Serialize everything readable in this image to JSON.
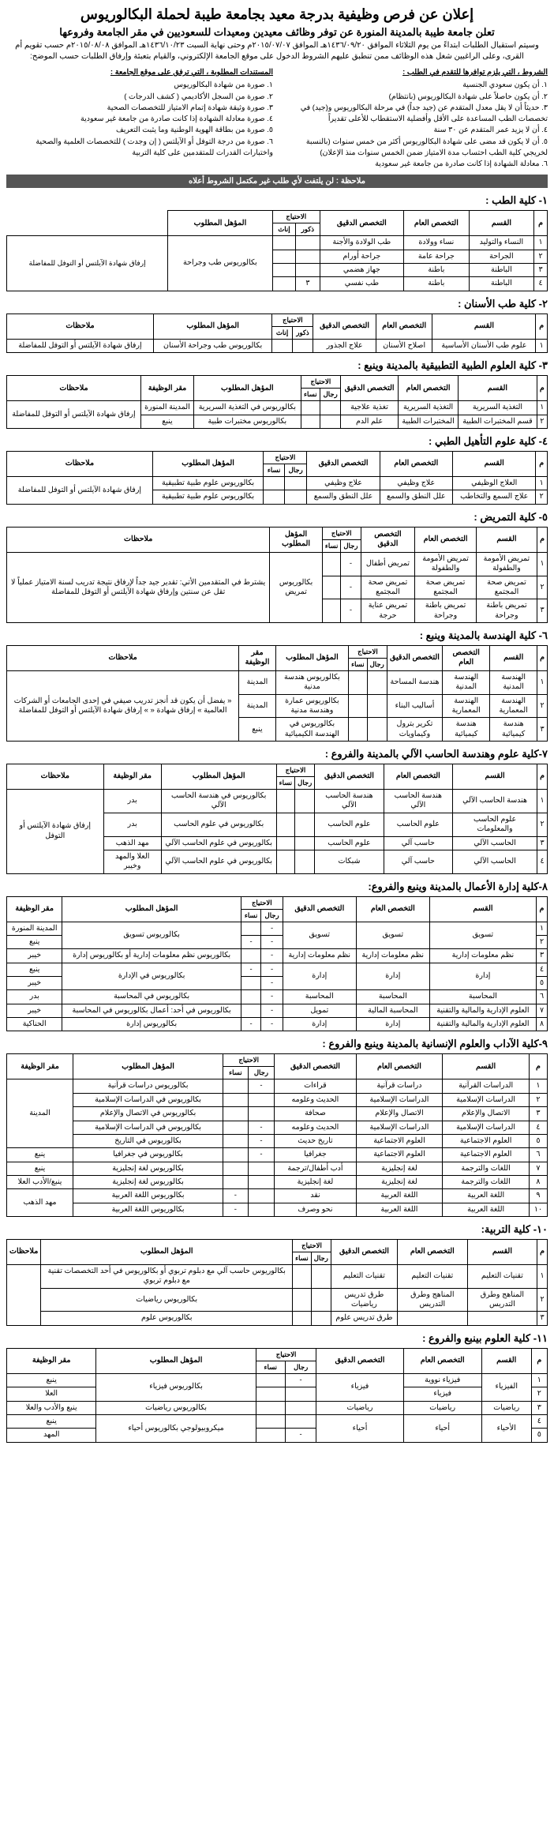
{
  "header": {
    "main_title": "إعلان عن فرص وظيفية بدرجة معيد بجامعة طيبة لحملة البكالوريوس",
    "sub_title": "تعلن جامعة طيبة بالمدينة المنورة عن توفر وظائف معيدين ومعيدات للسعوديين في مقر الجامعة وفروعها",
    "desc": "وسيتم استقبال الطلبات ابتداءً من يوم الثلاثاء الموافق ١٤٣٦/٠٩/٢٠هـ الموافق ٢٠١٥/٠٧/٠٧م وحتى نهاية السبت ١٤٣٦/١٠/٢٣هـ الموافق ٢٠١٥/٠٨/٠٨م حسب تقويم أم القرى، وعلى الراغبين شغل هذه الوظائف ممن تنطبق عليهم الشروط الدخول على موقع الجامعة الإلكتروني، والقيام بتعبئة وإرفاق الطلبات حسب الموضح:"
  },
  "conditions": {
    "right_title": "الشروط ، التي يلزم توافرها للتقدم في الطلب :",
    "right_items": [
      "١. أن يكون سعودي الجنسية",
      "٢. أن يكون حاصلاً على شهادة البكالوريوس (بانتظام)",
      "٣. حديثاً أن لا يقل معدل المتقدم عن (جيد جداً) في مرحلة البكالوريوس و(جيد) في تخصصات الطب المساعدة على الأقل وأفضلية الاستقطاب للأعلى تقديراً",
      "٤. أن لا يزيد عمر المتقدم عن ٣٠ سنة",
      "٥. أن لا يكون قد مضى على شهادة البكالوريوس أكثر من خمس سنوات (بالنسبة لخريجي كلية الطب احتساب مدة الامتياز ضمن الخمس سنوات منذ الإعلان)",
      "٦. معادلة الشهادة إذا كانت صادرة من جامعة غير سعودية"
    ],
    "left_title": "المستندات المطلوبة ، التي ترفق على موقع الجامعة :",
    "left_items": [
      "١. صورة من شهادة البكالوريوس",
      "٢. صورة من السجل الأكاديمي ( كشف الدرجات )",
      "٣. صورة وثيقة شهادة إتمام الامتياز للتخصصات الصحية",
      "٤. صورة معادلة الشهادة إذا كانت صادرة من جامعة غير سعودية",
      "٥. صورة من بطاقة الهوية الوطنية وما يثبت التعريف",
      "٦. صورة من درجة التوفل أو الآيلتس ( إن وجدت ) للتخصصات العلمية والصحية واختبارات القدرات للمتقدمين على كلية التربية"
    ]
  },
  "note": "ملاحظة : لن يلتفت لأي طلب غير مكتمل الشروط أعلاه",
  "sections": [
    {
      "title": "١- كلية الطب :",
      "cols": [
        "م",
        "القسم",
        "التخصص العام",
        "التخصص الدقيق",
        "الاحتياج|ذكور|إناث",
        "المؤهل المطلوب"
      ],
      "rows": [
        [
          "١",
          "النساء والتوليد",
          "نساء وولادة",
          "طب الولادة والأجنة",
          "",
          "",
          "@rs4:بكالوريوس طب وجراحة"
        ],
        [
          "٢",
          "الجراحة",
          "جراحة عامة",
          "جراحة أورام",
          "",
          "",
          ""
        ],
        [
          "٣",
          "الباطنة",
          "باطنة",
          "جهاز هضمي",
          "",
          "",
          ""
        ],
        [
          "٤",
          "الباطنة",
          "باطنة",
          "طب نفسي",
          "٣",
          "",
          ""
        ]
      ],
      "extra_col": {
        "label": "إرفاق شهادة الآيلتس أو التوفل للمفاضلة",
        "span": 4
      }
    },
    {
      "title": "٢- كلية طب الأسنان :",
      "cols": [
        "م",
        "القسم",
        "التخصص العام",
        "التخصص الدقيق",
        "الاحتياج|ذكور|إناث",
        "المؤهل المطلوب",
        "ملاحظات"
      ],
      "rows": [
        [
          "١",
          "علوم طب الأسنان الأساسية",
          "اصلاح الأسنان",
          "علاج الجذور",
          "",
          "",
          "بكالوريوس طب وجراحة الأسنان",
          "إرفاق شهادة الآيلتس أو التوفل للمفاضلة"
        ]
      ]
    },
    {
      "title": "٣- كلية العلوم الطبية التطبيقية بالمدينة وينبع :",
      "cols": [
        "م",
        "القسم",
        "التخصص العام",
        "التخصص الدقيق",
        "الاحتياج|رجال|نساء",
        "المؤهل المطلوب",
        "مقر الوظيفة",
        "ملاحظات"
      ],
      "rows": [
        [
          "١",
          "التغذية السريرية",
          "التغذية السريرية",
          "تغذية علاجية",
          "",
          "",
          "بكالوريوس في التغذية السريرية",
          "المدينة المنورة",
          "@rs2:إرفاق شهادة الآيلتس أو التوفل للمفاضلة"
        ],
        [
          "٢",
          "قسم المختبرات الطبية",
          "المختبرات الطبية",
          "علم الدم",
          "",
          "",
          "بكالوريوس مختبرات طبية",
          "ينبع",
          ""
        ]
      ]
    },
    {
      "title": "٤- كلية علوم التأهيل الطبي :",
      "cols": [
        "م",
        "القسم",
        "التخصص العام",
        "التخصص الدقيق",
        "الاحتياج|رجال|نساء",
        "المؤهل المطلوب",
        "ملاحظات"
      ],
      "rows": [
        [
          "١",
          "العلاج الوظيفي",
          "علاج وظيفي",
          "علاج وظيفي",
          "",
          "",
          "بكالوريوس علوم طبية تطبيقية",
          "@rs2:إرفاق شهادة الآيلتس أو التوفل للمفاضلة"
        ],
        [
          "٢",
          "علاج السمع والتخاطب",
          "علل النطق والسمع",
          "علل النطق والسمع",
          "",
          "",
          "بكالوريوس علوم طبية تطبيقية",
          ""
        ]
      ]
    },
    {
      "title": "٥- كلية التمريض :",
      "cols": [
        "م",
        "القسم",
        "التخصص العام",
        "التخصص الدقيق",
        "الاحتياج|رجال|نساء",
        "المؤهل المطلوب",
        "ملاحظات"
      ],
      "rows": [
        [
          "١",
          "تمريض الأمومة والطفولة",
          "تمريض الأمومة والطفولة",
          "تمريض أطفال",
          "-",
          "",
          "@rs3:بكالوريوس تمريض",
          "@rs3:يشترط في المتقدمين الأتي: تقدير جيد جداً لإرفاق نتيجة تدريب لسنة الامتياز عملياً لا تقل عن سنتين وإرفاق شهادة الآيلتس أو التوفل للمفاضلة"
        ],
        [
          "٢",
          "تمريض صحة المجتمع",
          "تمريض صحة المجتمع",
          "تمريض صحة المجتمع",
          "-",
          "",
          "",
          ""
        ],
        [
          "٣",
          "تمريض باطنة وجراحة",
          "تمريض باطنة وجراحة",
          "تمريض عناية حرجة",
          "-",
          "",
          "",
          ""
        ]
      ]
    },
    {
      "title": "٦- كلية الهندسة بالمدينة وينبع :",
      "cols": [
        "م",
        "القسم",
        "التخصص العام",
        "التخصص الدقيق",
        "الاحتياج|رجال|نساء",
        "المؤهل المطلوب",
        "مقر الوظيفة",
        "ملاحظات"
      ],
      "rows": [
        [
          "١",
          "الهندسة المدنية",
          "الهندسة المدنية",
          "هندسة المساحة",
          "",
          "",
          "بكالوريوس هندسة مدنية",
          "المدينة",
          "@rs3:« يفضل أن يكون قد أنجز تدريب صيفي في إحدى الجامعات أو الشركات العالمية » إرفاق شهادة « »  إرفاق شهادة الآيلتس أو التوفل للمفاضلة"
        ],
        [
          "٢",
          "الهندسة المعمارية",
          "الهندسة المعمارية",
          "أساليب البناء",
          "",
          "",
          "بكالوريوس عمارة وهندسة مدنية",
          "المدينة",
          ""
        ],
        [
          "٣",
          "هندسة كيميائية",
          "هندسة كيميائية",
          "تكرير بترول وكيماويات",
          "",
          "",
          "بكالوريوس في الهندسة الكيميائية",
          "ينبع",
          ""
        ]
      ]
    },
    {
      "title": "٧-كلية علوم وهندسة الحاسب الآلي بالمدينة والفروع :",
      "cols": [
        "م",
        "القسم",
        "التخصص العام",
        "التخصص الدقيق",
        "الاحتياج|رجال|نساء",
        "المؤهل المطلوب",
        "مقر الوظيفة",
        "ملاحظات"
      ],
      "rows": [
        [
          "١",
          "هندسة الحاسب الآلي",
          "هندسة الحاسب الآلي",
          "هندسة الحاسب الآلي",
          "",
          "",
          "بكالوريوس في هندسة الحاسب الآلي",
          "بدر",
          "@rs4:إرفاق شهادة الآيلتس أو التوفل"
        ],
        [
          "٢",
          "علوم الحاسب والمعلومات",
          "علوم الحاسب",
          "علوم الحاسب",
          "",
          "",
          "بكالوريوس في علوم الحاسب",
          "بدر",
          ""
        ],
        [
          "٣",
          "الحاسب الآلي",
          "حاسب آلي",
          "علوم الحاسب",
          "",
          "",
          "بكالوريوس في علوم الحاسب الآلي",
          "مهد الذهب",
          ""
        ],
        [
          "٤",
          "الحاسب الآلي",
          "حاسب آلي",
          "شبكات",
          "",
          "",
          "بكالوريوس في علوم الحاسب الآلي",
          "العلا والمهد وخيبر",
          ""
        ]
      ]
    },
    {
      "title": "٨-كلية إدارة الأعمال بالمدينة وينبع والفروع:",
      "cols": [
        "م",
        "القسم",
        "التخصص العام",
        "التخصص الدقيق",
        "الاحتياج|رجال|نساء",
        "المؤهل المطلوب",
        "مقر الوظيفة"
      ],
      "rows": [
        [
          "١",
          "@rs2:تسويق",
          "@rs2:تسويق",
          "@rs2:تسويق",
          "-",
          "",
          "@rs2:بكالوريوس تسويق",
          "المدينة المنورة"
        ],
        [
          "٢",
          "",
          "",
          "",
          "-",
          "-",
          "",
          "ينبع"
        ],
        [
          "٣",
          "نظم معلومات إدارية",
          "نظم معلومات إدارية",
          "نظم معلومات إدارية",
          "-",
          "",
          "بكالوريوس نظم معلومات إدارية أو بكالوريوس إدارة",
          "خيبر"
        ],
        [
          "٤",
          "@rs2:إدارة",
          "@rs2:إدارة",
          "@rs2:إدارة",
          "-",
          "-",
          "@rs2:بكالوريوس في الإدارة",
          "ينبع"
        ],
        [
          "٥",
          "",
          "",
          "",
          "-",
          "",
          "",
          "خيبر"
        ],
        [
          "٦",
          "المحاسبة",
          "المحاسبة",
          "المحاسبة",
          "-",
          "",
          "بكالوريوس في المحاسبة",
          "بدر"
        ],
        [
          "٧",
          "العلوم الإدارية والمالية والتقنية",
          "المحاسبة المالية",
          "تمويل",
          "-",
          "",
          "بكالوريوس في أحد: أعمال بكالوريوس في المحاسبة",
          "خيبر"
        ],
        [
          "٨",
          "العلوم الإدارية والمالية والتقنية",
          "إدارة",
          "إدارة",
          "-",
          "-",
          "بكالوريوس إدارة",
          "الحناكية"
        ]
      ]
    },
    {
      "title": "٩-كلية الآداب والعلوم الإنسانية بالمدينة وينبع والفروع :",
      "cols": [
        "م",
        "القسم",
        "التخصص العام",
        "التخصص الدقيق",
        "الاحتياج|رجال|نساء",
        "المؤهل المطلوب",
        "مقر الوظيفة"
      ],
      "rows": [
        [
          "١",
          "الدراسات القرآنية",
          "دراسات قرآنية",
          "قراءات",
          "-",
          "",
          "بكالوريوس دراسات قرآنية",
          "@rs5:المدينة"
        ],
        [
          "٢",
          "الدراسات الإسلامية",
          "الدراسات الإسلامية",
          "الحديث وعلومه",
          "",
          "",
          "بكالوريوس في الدراسات الإسلامية",
          ""
        ],
        [
          "٣",
          "الاتصال والإعلام",
          "الاتصال والإعلام",
          "صحافة",
          "",
          "",
          "بكالوريوس في الاتصال والإعلام",
          ""
        ],
        [
          "٤",
          "الدراسات الإسلامية",
          "الدراسات الإسلامية",
          "الحديث وعلومه",
          "-",
          "",
          "بكالوريوس في الدراسات الإسلامية",
          ""
        ],
        [
          "٥",
          "العلوم الاجتماعية",
          "العلوم الاجتماعية",
          "تاريخ حديث",
          "-",
          "",
          "بكالوريوس في التاريخ",
          ""
        ],
        [
          "٦",
          "العلوم الاجتماعية",
          "العلوم الاجتماعية",
          "جغرافيا",
          "-",
          "",
          "بكالوريوس في جغرافيا",
          "ينبع"
        ],
        [
          "٧",
          "اللغات والترجمة",
          "لغة إنجليزية",
          "أدب أطفال/ترجمة",
          "",
          "",
          "بكالوريوس لغة إنجليزية",
          "ينبع"
        ],
        [
          "٨",
          "اللغات والترجمة",
          "لغة إنجليزية",
          "لغة إنجليزية",
          "",
          "",
          "بكالوريوس لغة إنجليزية",
          "ينبع/الأدب العلا"
        ],
        [
          "٩",
          "اللغة العربية",
          "اللغة العربية",
          "نقد",
          "",
          "-",
          "بكالوريوس اللغة العربية",
          "@rs2:مهد الذهب"
        ],
        [
          "١٠",
          "اللغة العربية",
          "اللغة العربية",
          "نحو وصرف",
          "",
          "-",
          "بكالوريوس اللغة العربية",
          ""
        ]
      ]
    },
    {
      "title": "١٠- كلية التربية:",
      "cols": [
        "م",
        "القسم",
        "التخصص العام",
        "التخصص الدقيق",
        "الاحتياج|رجال|نساء",
        "المؤهل المطلوب",
        "ملاحظات"
      ],
      "rows": [
        [
          "١",
          "تقنيات التعليم",
          "تقنيات التعليم",
          "تقنيات التعليم",
          "",
          "",
          "بكالوريوس حاسب آلي مع دبلوم تربوي أو بكالوريوس في أحد التخصصات تقنية مع دبلوم تربوي",
          "@rs3:"
        ],
        [
          "٢",
          "المناهج وطرق التدريس",
          "المناهج وطرق التدريس",
          "طرق تدريس رياضيات",
          "",
          "",
          "بكالوريوس رياضيات",
          ""
        ],
        [
          "٣",
          "",
          "",
          "طرق تدريس علوم",
          "",
          "",
          "بكالوريوس علوم",
          ""
        ]
      ]
    },
    {
      "title": "١١- كلية العلوم بينبع والفروع :",
      "cols": [
        "م",
        "القسم",
        "التخصص العام",
        "التخصص الدقيق",
        "الاحتياج|رجال|نساء",
        "المؤهل المطلوب",
        "مقر الوظيفة"
      ],
      "rows": [
        [
          "١",
          "@rs2:الفيزياء",
          "فيزياء نووية",
          "@rs2:فيزياء",
          "-",
          "",
          "@rs2:بكالوريوس فيزياء",
          "ينبع"
        ],
        [
          "٢",
          "",
          "فيزياء",
          "",
          "",
          "",
          "",
          "العلا"
        ],
        [
          "٣",
          "رياضيات",
          "رياضيات",
          "رياضيات",
          "",
          "",
          "بكالوريوس رياضيات",
          "ينبع والأدب والعلا"
        ],
        [
          "٤",
          "@rs2:الأحياء",
          "@rs2:أحياء",
          "@rs2:أحياء",
          "",
          "",
          "@rs2:ميكروبيولوجي بكالوريوس أحياء",
          "ينبع"
        ],
        [
          "٥",
          "",
          "",
          "",
          "-",
          "",
          "",
          "المهد"
        ]
      ]
    }
  ]
}
